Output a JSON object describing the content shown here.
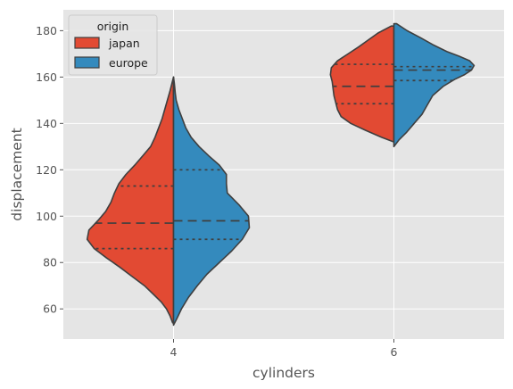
{
  "chart_data": {
    "type": "violin",
    "split": true,
    "xlabel": "cylinders",
    "ylabel": "displacement",
    "categories": [
      "4",
      "6"
    ],
    "yticks": [
      60,
      80,
      100,
      120,
      140,
      160,
      180
    ],
    "ylim": [
      47,
      189
    ],
    "grid": true,
    "legend": {
      "title": "origin",
      "placement": "top-left",
      "entries": [
        "japan",
        "europe"
      ]
    },
    "series": [
      {
        "name": "japan",
        "color": "#e24a33",
        "side": "left",
        "violins": [
          {
            "category": "4",
            "min": 54,
            "max": 160,
            "quartiles": [
              86,
              97,
              113
            ],
            "density": [
              [
                54,
                0.01
              ],
              [
                57,
                0.04
              ],
              [
                60,
                0.08
              ],
              [
                63,
                0.14
              ],
              [
                66,
                0.22
              ],
              [
                70,
                0.33
              ],
              [
                74,
                0.47
              ],
              [
                78,
                0.61
              ],
              [
                82,
                0.76
              ],
              [
                86,
                0.9
              ],
              [
                90,
                0.98
              ],
              [
                94,
                0.96
              ],
              [
                98,
                0.86
              ],
              [
                102,
                0.77
              ],
              [
                106,
                0.71
              ],
              [
                110,
                0.67
              ],
              [
                114,
                0.62
              ],
              [
                118,
                0.54
              ],
              [
                122,
                0.44
              ],
              [
                126,
                0.35
              ],
              [
                130,
                0.26
              ],
              [
                134,
                0.21
              ],
              [
                138,
                0.17
              ],
              [
                142,
                0.13
              ],
              [
                146,
                0.1
              ],
              [
                150,
                0.07
              ],
              [
                154,
                0.04
              ],
              [
                157,
                0.02
              ],
              [
                160,
                0.0
              ]
            ]
          },
          {
            "category": "6",
            "min": 132,
            "max": 182,
            "quartiles": [
              148.5,
              156,
              165.5
            ],
            "density": [
              [
                132,
                0.0
              ],
              [
                134,
                0.14
              ],
              [
                137,
                0.32
              ],
              [
                140,
                0.49
              ],
              [
                143,
                0.6
              ],
              [
                146,
                0.64
              ],
              [
                149,
                0.66
              ],
              [
                152,
                0.68
              ],
              [
                155,
                0.69
              ],
              [
                158,
                0.7
              ],
              [
                161,
                0.72
              ],
              [
                164,
                0.71
              ],
              [
                167,
                0.64
              ],
              [
                170,
                0.52
              ],
              [
                173,
                0.4
              ],
              [
                176,
                0.29
              ],
              [
                179,
                0.18
              ],
              [
                182,
                0.03
              ]
            ]
          }
        ]
      },
      {
        "name": "europe",
        "color": "#348abd",
        "side": "right",
        "violins": [
          {
            "category": "4",
            "min": 53,
            "max": 160,
            "quartiles": [
              90,
              98,
              120
            ],
            "density": [
              [
                53,
                0.0
              ],
              [
                56,
                0.04
              ],
              [
                60,
                0.09
              ],
              [
                65,
                0.17
              ],
              [
                70,
                0.27
              ],
              [
                75,
                0.38
              ],
              [
                80,
                0.52
              ],
              [
                85,
                0.66
              ],
              [
                90,
                0.78
              ],
              [
                95,
                0.86
              ],
              [
                100,
                0.85
              ],
              [
                105,
                0.74
              ],
              [
                110,
                0.61
              ],
              [
                114,
                0.6
              ],
              [
                118,
                0.6
              ],
              [
                122,
                0.52
              ],
              [
                126,
                0.4
              ],
              [
                130,
                0.29
              ],
              [
                134,
                0.2
              ],
              [
                138,
                0.14
              ],
              [
                142,
                0.1
              ],
              [
                146,
                0.06
              ],
              [
                150,
                0.03
              ],
              [
                153,
                0.02
              ],
              [
                157,
                0.01
              ],
              [
                160,
                0.0
              ]
            ]
          },
          {
            "category": "6",
            "min": 130,
            "max": 183,
            "quartiles": [
              158.5,
              163,
              164.5
            ],
            "density": [
              [
                130,
                0.0
              ],
              [
                133,
                0.06
              ],
              [
                136,
                0.14
              ],
              [
                140,
                0.23
              ],
              [
                144,
                0.32
              ],
              [
                148,
                0.38
              ],
              [
                152,
                0.44
              ],
              [
                156,
                0.56
              ],
              [
                159,
                0.69
              ],
              [
                161,
                0.8
              ],
              [
                163,
                0.88
              ],
              [
                165,
                0.91
              ],
              [
                167,
                0.86
              ],
              [
                169,
                0.74
              ],
              [
                171,
                0.6
              ],
              [
                174,
                0.44
              ],
              [
                177,
                0.3
              ],
              [
                180,
                0.15
              ],
              [
                183,
                0.03
              ]
            ]
          }
        ]
      }
    ]
  }
}
